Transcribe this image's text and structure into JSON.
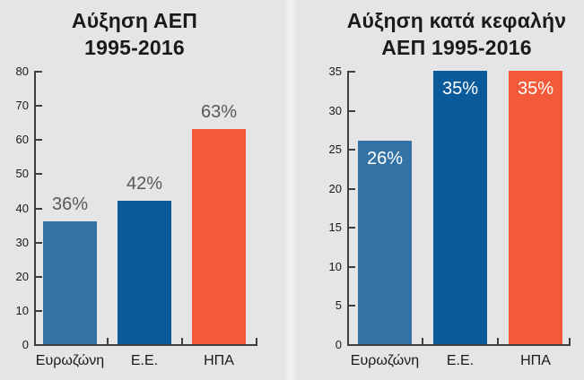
{
  "page": {
    "background_color": "#e5e4e7",
    "seam_color": "#f4f3f6"
  },
  "colors": {
    "axis": "#3f3e41",
    "title_text": "#1a191c",
    "tick_text": "#1a191c",
    "value_label_above": "#58585a",
    "value_label_inside": "#ffffff",
    "bar_eurozone": "#3372a4",
    "bar_eu": "#0b5a9a",
    "bar_usa": "#f25a39"
  },
  "chart_data": [
    {
      "type": "bar",
      "title": "Αύξηση ΑΕΠ 1995-2016",
      "title_lines": [
        "Αύξηση ΑΕΠ",
        "1995-2016"
      ],
      "categories": [
        "Ευρωζώνη",
        "Ε.Ε.",
        "ΗΠΑ"
      ],
      "values": [
        36,
        42,
        63
      ],
      "value_labels": [
        "36%",
        "42%",
        "63%"
      ],
      "value_label_placement": "above",
      "bar_colors": [
        "#3372a4",
        "#0b5a9a",
        "#f25a39"
      ],
      "xlabel": "",
      "ylabel": "",
      "ylim": [
        0,
        80
      ],
      "ytick_interval": 10,
      "ytick_labels": [
        "0",
        "10",
        "20",
        "30",
        "40",
        "50",
        "60",
        "70",
        "80"
      ],
      "grid": false,
      "legend": null
    },
    {
      "type": "bar",
      "title": "Αύξηση κατά κεφαλήν ΑΕΠ 1995-2016",
      "title_lines": [
        "Αύξηση κατά κεφαλήν",
        "ΑΕΠ 1995-2016"
      ],
      "categories": [
        "Ευρωζώνη",
        "Ε.Ε.",
        "ΗΠΑ"
      ],
      "values": [
        26,
        35,
        35
      ],
      "value_labels": [
        "26%",
        "35%",
        "35%"
      ],
      "value_label_placement": "inside-top",
      "bar_colors": [
        "#3372a4",
        "#0b5a9a",
        "#f25a39"
      ],
      "xlabel": "",
      "ylabel": "",
      "ylim": [
        0,
        35
      ],
      "ytick_interval": 5,
      "ytick_labels": [
        "0",
        "5",
        "10",
        "15",
        "20",
        "25",
        "30",
        "35"
      ],
      "grid": false,
      "legend": null
    }
  ]
}
